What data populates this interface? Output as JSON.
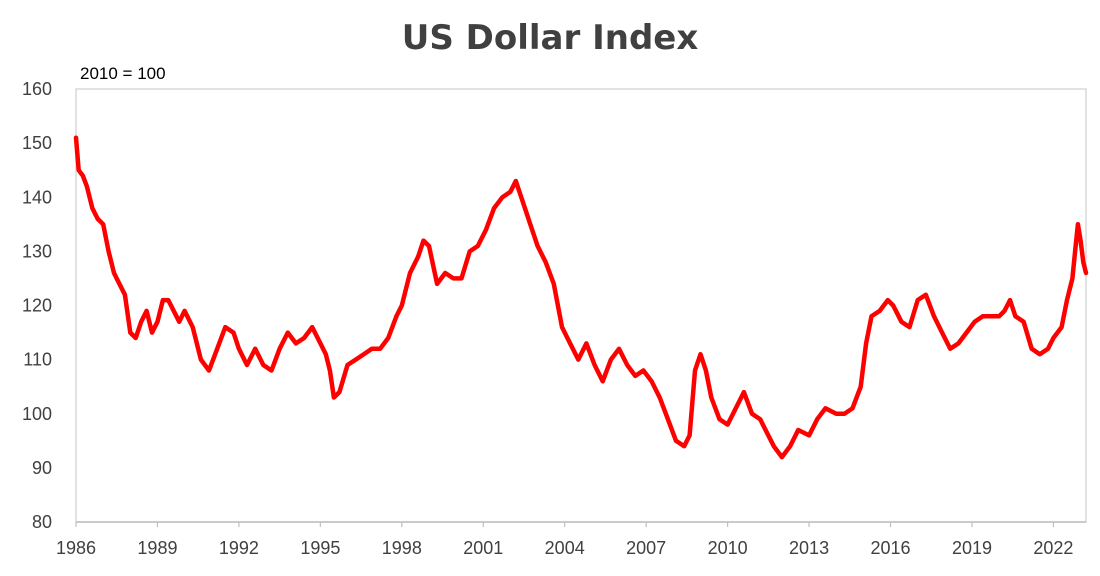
{
  "chart_data": {
    "type": "line",
    "title": "US Dollar Index",
    "subtitle": "2010 = 100",
    "xlabel": "",
    "ylabel": "",
    "xlim": [
      1986.0,
      2023.2
    ],
    "ylim": [
      80,
      160
    ],
    "yticks": [
      80,
      90,
      100,
      110,
      120,
      130,
      140,
      150,
      160
    ],
    "xticks": [
      "1986",
      "1989",
      "1992",
      "1995",
      "1998",
      "2001",
      "2004",
      "2007",
      "2010",
      "2013",
      "2016",
      "2019",
      "2022"
    ],
    "grid": false,
    "legend": "none",
    "line_color": "#ff0000",
    "series": [
      {
        "x": [
          1986.0,
          1986.1,
          1986.25,
          1986.4,
          1986.6,
          1986.8,
          1987.0,
          1987.2,
          1987.4,
          1987.6,
          1987.8,
          1988.0,
          1988.2,
          1988.4,
          1988.6,
          1988.8,
          1989.0,
          1989.2,
          1989.4,
          1989.6,
          1989.8,
          1990.0,
          1990.3,
          1990.6,
          1990.9,
          1991.2,
          1991.5,
          1991.8,
          1992.0,
          1992.3,
          1992.6,
          1992.9,
          1993.2,
          1993.5,
          1993.8,
          1994.1,
          1994.4,
          1994.7,
          1995.0,
          1995.2,
          1995.35,
          1995.5,
          1995.7,
          1996.0,
          1996.3,
          1996.6,
          1996.9,
          1997.2,
          1997.5,
          1997.8,
          1998.0,
          1998.3,
          1998.6,
          1998.8,
          1999.0,
          1999.3,
          1999.6,
          1999.9,
          2000.2,
          2000.5,
          2000.8,
          2001.1,
          2001.4,
          2001.7,
          2002.0,
          2002.2,
          2002.4,
          2002.6,
          2002.8,
          2003.0,
          2003.3,
          2003.6,
          2003.9,
          2004.2,
          2004.5,
          2004.8,
          2005.1,
          2005.4,
          2005.7,
          2006.0,
          2006.3,
          2006.6,
          2006.9,
          2007.2,
          2007.5,
          2007.8,
          2008.1,
          2008.4,
          2008.6,
          2008.8,
          2009.0,
          2009.2,
          2009.4,
          2009.7,
          2010.0,
          2010.3,
          2010.6,
          2010.9,
          2011.2,
          2011.5,
          2011.7,
          2012.0,
          2012.3,
          2012.6,
          2013.0,
          2013.3,
          2013.6,
          2014.0,
          2014.3,
          2014.6,
          2014.9,
          2015.1,
          2015.3,
          2015.6,
          2015.9,
          2016.1,
          2016.4,
          2016.7,
          2017.0,
          2017.3,
          2017.6,
          2017.9,
          2018.2,
          2018.5,
          2018.8,
          2019.1,
          2019.4,
          2019.7,
          2020.0,
          2020.2,
          2020.4,
          2020.6,
          2020.9,
          2021.2,
          2021.5,
          2021.8,
          2022.0,
          2022.3,
          2022.5,
          2022.7,
          2022.8,
          2022.9,
          2023.0,
          2023.1,
          2023.2
        ],
        "values": [
          151,
          145,
          144,
          142,
          138,
          136,
          135,
          130,
          126,
          124,
          122,
          115,
          114,
          117,
          119,
          115,
          117,
          121,
          121,
          119,
          117,
          119,
          116,
          110,
          108,
          112,
          116,
          115,
          112,
          109,
          112,
          109,
          108,
          112,
          115,
          113,
          114,
          116,
          113,
          111,
          108,
          103,
          104,
          109,
          110,
          111,
          112,
          112,
          114,
          118,
          120,
          126,
          129,
          132,
          131,
          124,
          126,
          125,
          125,
          130,
          131,
          134,
          138,
          140,
          141,
          143,
          140,
          137,
          134,
          131,
          128,
          124,
          116,
          113,
          110,
          113,
          109,
          106,
          110,
          112,
          109,
          107,
          108,
          106,
          103,
          99,
          95,
          94,
          96,
          108,
          111,
          108,
          103,
          99,
          98,
          101,
          104,
          100,
          99,
          96,
          94,
          92,
          94,
          97,
          96,
          99,
          101,
          100,
          100,
          101,
          105,
          113,
          118,
          119,
          121,
          120,
          117,
          116,
          121,
          122,
          118,
          115,
          112,
          113,
          115,
          117,
          118,
          118,
          118,
          119,
          121,
          118,
          117,
          112,
          111,
          112,
          114,
          116,
          121,
          125,
          130,
          135,
          132,
          128,
          126
        ]
      }
    ]
  }
}
